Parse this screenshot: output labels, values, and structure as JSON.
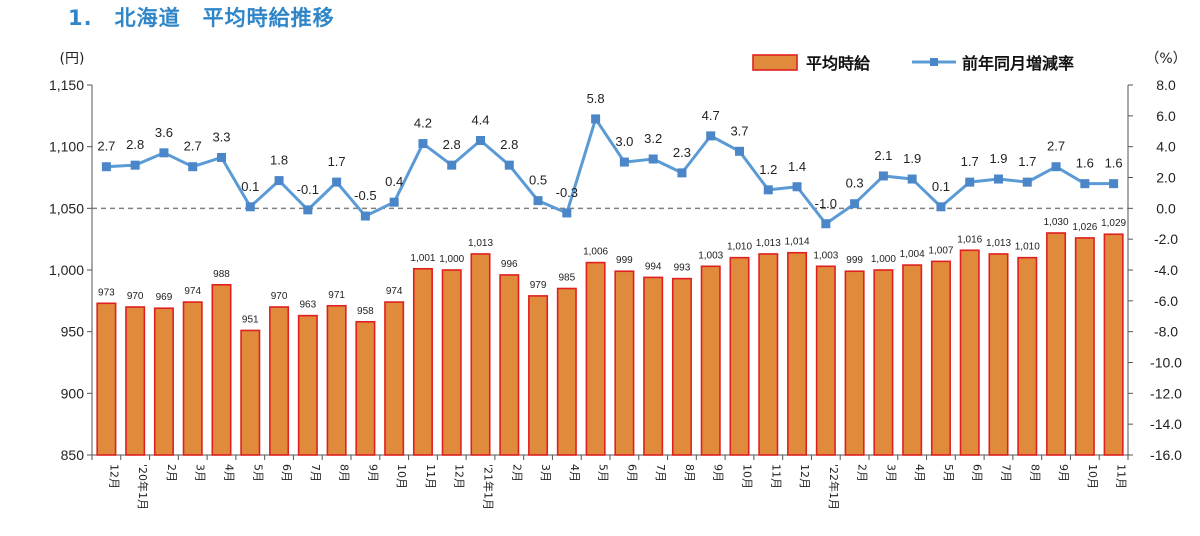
{
  "heading": "1.　北海道　平均時給推移",
  "chart_data": {
    "type": "bar",
    "categories": [
      "12月",
      "'20年1月",
      "2月",
      "3月",
      "4月",
      "5月",
      "6月",
      "7月",
      "8月",
      "9月",
      "10月",
      "11月",
      "12月",
      "'21年1月",
      "2月",
      "3月",
      "4月",
      "5月",
      "6月",
      "7月",
      "8月",
      "9月",
      "10月",
      "11月",
      "12月",
      "'22年1月",
      "2月",
      "3月",
      "4月",
      "5月",
      "6月",
      "7月",
      "8月",
      "9月",
      "10月",
      "11月"
    ],
    "series": [
      {
        "name": "平均時給",
        "type": "bar",
        "axis": "left",
        "values": [
          973,
          970,
          969,
          974,
          988,
          951,
          970,
          963,
          971,
          958,
          974,
          1001,
          1000,
          1013,
          996,
          979,
          985,
          1006,
          999,
          994,
          993,
          1003,
          1010,
          1013,
          1014,
          1003,
          999,
          1000,
          1004,
          1007,
          1016,
          1013,
          1010,
          1030,
          1026,
          1029
        ],
        "labels": [
          "973",
          "970",
          "969",
          "974",
          "988",
          "951",
          "970",
          "963",
          "971",
          "958",
          "974",
          "1,001",
          "1,000",
          "1,013",
          "996",
          "979",
          "985",
          "1,006",
          "999",
          "994",
          "993",
          "1,003",
          "1,010",
          "1,013",
          "1,014",
          "1,003",
          "999",
          "1,000",
          "1,004",
          "1,007",
          "1,016",
          "1,013",
          "1,010",
          "1,030",
          "1,026",
          "1,029"
        ]
      },
      {
        "name": "前年同月増減率",
        "type": "line",
        "axis": "right",
        "values": [
          2.7,
          2.8,
          3.6,
          2.7,
          3.3,
          0.1,
          1.8,
          -0.1,
          1.7,
          -0.5,
          0.4,
          4.2,
          2.8,
          4.4,
          2.8,
          0.5,
          -0.3,
          5.8,
          3.0,
          3.2,
          2.3,
          4.7,
          3.7,
          1.2,
          1.4,
          -1.0,
          0.3,
          2.1,
          1.9,
          0.1,
          1.7,
          1.9,
          1.7,
          2.7,
          1.6,
          1.6
        ],
        "labels": [
          "2.7",
          "2.8",
          "3.6",
          "2.7",
          "3.3",
          "0.1",
          "1.8",
          "-0.1",
          "1.7",
          "-0.5",
          "0.4",
          "4.2",
          "2.8",
          "4.4",
          "2.8",
          "0.5",
          "-0.3",
          "5.8",
          "3.0",
          "3.2",
          "2.3",
          "4.7",
          "3.7",
          "1.2",
          "1.4",
          "-1.0",
          "0.3",
          "2.1",
          "1.9",
          "0.1",
          "1.7",
          "1.9",
          "1.7",
          "2.7",
          "1.6",
          "1.6"
        ]
      }
    ],
    "y_left": {
      "unit": "(円)",
      "range": [
        850,
        1150
      ],
      "ticks": [
        850,
        900,
        950,
        1000,
        1050,
        1100,
        1150
      ],
      "tick_labels": [
        "850",
        "900",
        "950",
        "1,000",
        "1,050",
        "1,100",
        "1,150"
      ]
    },
    "y_right": {
      "unit": "（%）",
      "range": [
        -16,
        8
      ],
      "ticks": [
        -16,
        -14,
        -12,
        -10,
        -8,
        -6,
        -4,
        -2,
        0,
        2,
        4,
        6,
        8
      ],
      "tick_labels": [
        "-16.0",
        "-14.0",
        "-12.0",
        "-10.0",
        "-8.0",
        "-6.0",
        "-4.0",
        "-2.0",
        "0.0",
        "2.0",
        "4.0",
        "6.0",
        "8.0"
      ]
    },
    "reference_line": 0,
    "legend_position": "top-right",
    "grid": false
  },
  "colors": {
    "bar_fill": "#e08a3c",
    "bar_stroke": "#e02020",
    "line": "#5b9bd5",
    "marker": "#4a86c8",
    "heading": "#2e86c8",
    "zero_line": "#808080"
  }
}
